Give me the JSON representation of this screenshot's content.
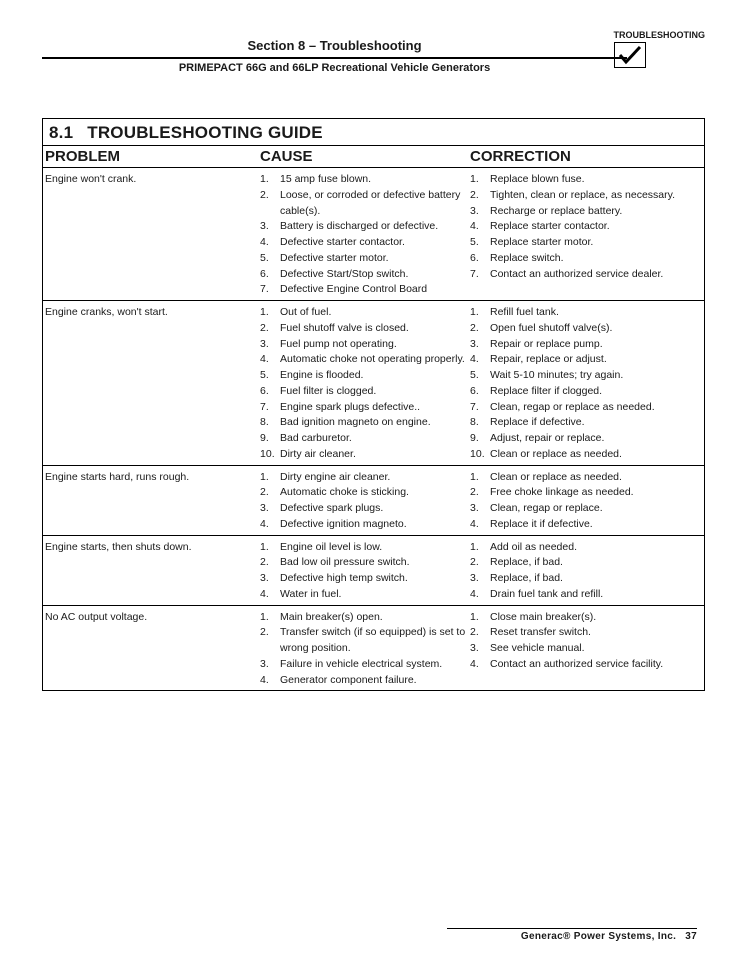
{
  "header": {
    "section_title": "Section 8 – Troubleshooting",
    "ts_label": "TROUBLESHOOTING",
    "subheader": "PRIMEPACT 66G and 66LP Recreational Vehicle Generators"
  },
  "guide": {
    "number": "8.1",
    "title": "TROUBLESHOOTING GUIDE",
    "col_problem": "PROBLEM",
    "col_cause": "CAUSE",
    "col_correction": "CORRECTION",
    "rows": [
      {
        "problem": "Engine won't crank.",
        "causes": [
          "15 amp fuse blown.",
          "Loose, or corroded or defective battery cable(s).",
          "Battery is discharged or defective.",
          "Defective starter contactor.",
          "Defective starter motor.",
          "Defective Start/Stop switch.",
          "Defective Engine Control Board"
        ],
        "corrections": [
          "Replace blown fuse.",
          "Tighten, clean or replace, as necessary.",
          "Recharge or replace battery.",
          "Replace starter contactor.",
          "Replace starter motor.",
          "Replace switch.",
          "Contact an authorized service dealer."
        ]
      },
      {
        "problem": "Engine cranks, won't start.",
        "causes": [
          "Out of fuel.",
          "Fuel shutoff valve is closed.",
          "Fuel pump not operating.",
          "Automatic choke not operating properly.",
          "Engine is flooded.",
          "Fuel filter is clogged.",
          "Engine spark plugs defective..",
          "Bad ignition magneto on engine.",
          "Bad carburetor.",
          "Dirty air cleaner."
        ],
        "corrections": [
          "Refill fuel tank.",
          "Open fuel shutoff valve(s).",
          "Repair or replace pump.",
          "Repair, replace or adjust.",
          "Wait 5-10 minutes; try again.",
          "Replace filter if clogged.",
          "Clean, regap or replace as needed.",
          "Replace if defective.",
          "Adjust, repair or replace.",
          "Clean or replace as needed."
        ]
      },
      {
        "problem": "Engine starts hard, runs rough.",
        "causes": [
          "Dirty engine air cleaner.",
          "Automatic choke is sticking.",
          "Defective spark plugs.",
          "Defective ignition magneto."
        ],
        "corrections": [
          "Clean or replace as needed.",
          "Free choke linkage as needed.",
          "Clean, regap or replace.",
          "Replace it if defective."
        ]
      },
      {
        "problem": "Engine starts, then shuts down.",
        "causes": [
          "Engine oil level is low.",
          "Bad low oil pressure switch.",
          "Defective high temp switch.",
          "Water in fuel."
        ],
        "corrections": [
          "Add oil as needed.",
          "Replace, if bad.",
          "Replace, if bad.",
          "Drain fuel tank and refill."
        ]
      },
      {
        "problem": "No AC output voltage.",
        "causes": [
          "Main breaker(s) open.",
          "Transfer switch (if so equipped) is set to wrong position.",
          "Failure in vehicle electrical system.",
          "Generator component failure."
        ],
        "corrections": [
          "Close main breaker(s).",
          "Reset transfer switch.",
          "See vehicle manual.",
          "Contact an authorized service facility."
        ]
      }
    ]
  },
  "footer": {
    "company": "Generac® Power Systems, Inc.",
    "page": "37"
  }
}
